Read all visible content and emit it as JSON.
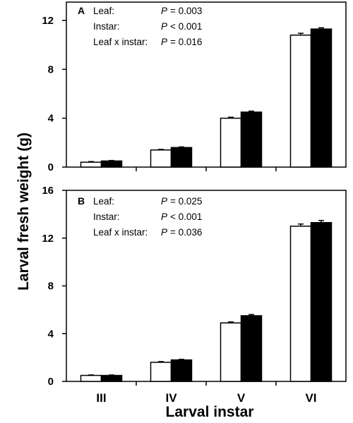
{
  "chart_data": [
    {
      "type": "bar",
      "panel": "A",
      "categories": [
        "III",
        "IV",
        "V",
        "VI"
      ],
      "series": [
        {
          "style": "open",
          "values": [
            0.4,
            1.4,
            4.0,
            10.8
          ],
          "errors": [
            0.05,
            0.05,
            0.08,
            0.15
          ]
        },
        {
          "style": "filled",
          "values": [
            0.5,
            1.6,
            4.5,
            11.3
          ],
          "errors": [
            0.04,
            0.05,
            0.08,
            0.1
          ]
        }
      ],
      "ylim": [
        0,
        13.5
      ],
      "yticks": [
        0,
        4,
        8,
        12
      ],
      "stats": [
        {
          "label": "Leaf:",
          "p": "P",
          "val": "= 0.003"
        },
        {
          "label": "Instar:",
          "p": "P",
          "val": "< 0.001"
        },
        {
          "label": "Leaf x instar:",
          "p": "P",
          "val": "= 0.016"
        }
      ]
    },
    {
      "type": "bar",
      "panel": "B",
      "categories": [
        "III",
        "IV",
        "V",
        "VI"
      ],
      "series": [
        {
          "style": "open",
          "values": [
            0.5,
            1.6,
            4.9,
            13.0
          ],
          "errors": [
            0.04,
            0.06,
            0.08,
            0.18
          ]
        },
        {
          "style": "filled",
          "values": [
            0.5,
            1.8,
            5.5,
            13.3
          ],
          "errors": [
            0.04,
            0.05,
            0.1,
            0.18
          ]
        }
      ],
      "ylim": [
        0,
        16
      ],
      "yticks": [
        0,
        4,
        8,
        12,
        16
      ],
      "stats": [
        {
          "label": "Leaf:",
          "p": "P",
          "val": "= 0.025"
        },
        {
          "label": "Instar:",
          "p": "P",
          "val": "< 0.001"
        },
        {
          "label": "Leaf x instar:",
          "p": "P",
          "val": "= 0.036"
        }
      ]
    }
  ],
  "ylabel": "Larval fresh weight (g)",
  "xlabel": "Larval instar",
  "colors": {
    "open_fill": "#ffffff",
    "filled_fill": "#000000",
    "stroke": "#000000"
  }
}
